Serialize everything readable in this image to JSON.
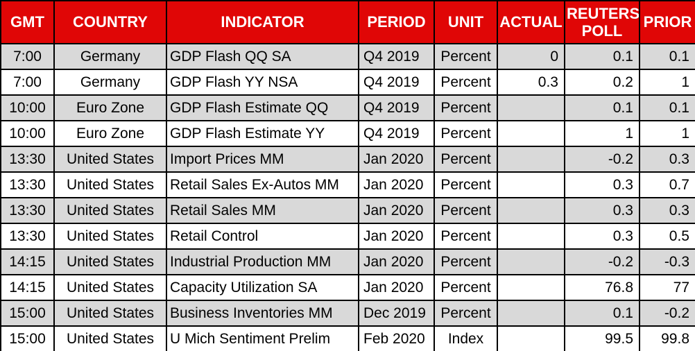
{
  "title": "Economic Calendar Table",
  "colors": {
    "header_bg": "#e00606",
    "header_text": "#ffffff",
    "row_bg": "#ffffff",
    "row_alt_bg": "#d9d9d9",
    "border": "#000000",
    "text": "#000000"
  },
  "chart_data": {
    "type": "table",
    "legend_position": "none",
    "grid": true,
    "columns": [
      {
        "key": "gmt",
        "label": "GMT"
      },
      {
        "key": "country",
        "label": "COUNTRY"
      },
      {
        "key": "indicator",
        "label": "INDICATOR"
      },
      {
        "key": "period",
        "label": "PERIOD"
      },
      {
        "key": "unit",
        "label": "UNIT"
      },
      {
        "key": "actual",
        "label": "ACTUAL"
      },
      {
        "key": "reuters_poll",
        "label": "REUTERS POLL"
      },
      {
        "key": "prior",
        "label": "PRIOR"
      }
    ],
    "rows": [
      [
        "7:00",
        "Germany",
        "GDP Flash QQ SA",
        "Q4 2019",
        "Percent",
        "0",
        "0.1",
        "0.1"
      ],
      [
        "7:00",
        "Germany",
        "GDP Flash YY NSA",
        "Q4 2019",
        "Percent",
        "0.3",
        "0.2",
        "1"
      ],
      [
        "10:00",
        "Euro Zone",
        "GDP Flash Estimate QQ",
        "Q4 2019",
        "Percent",
        "",
        "0.1",
        "0.1"
      ],
      [
        "10:00",
        "Euro Zone",
        "GDP Flash Estimate YY",
        "Q4 2019",
        "Percent",
        "",
        "1",
        "1"
      ],
      [
        "13:30",
        "United States",
        "Import Prices MM",
        "Jan 2020",
        "Percent",
        "",
        "-0.2",
        "0.3"
      ],
      [
        "13:30",
        "United States",
        "Retail Sales Ex-Autos MM",
        "Jan 2020",
        "Percent",
        "",
        "0.3",
        "0.7"
      ],
      [
        "13:30",
        "United States",
        "Retail Sales MM",
        "Jan 2020",
        "Percent",
        "",
        "0.3",
        "0.3"
      ],
      [
        "13:30",
        "United States",
        "Retail Control",
        "Jan 2020",
        "Percent",
        "",
        "0.3",
        "0.5"
      ],
      [
        "14:15",
        "United States",
        "Industrial Production MM",
        "Jan 2020",
        "Percent",
        "",
        "-0.2",
        "-0.3"
      ],
      [
        "14:15",
        "United States",
        "Capacity Utilization SA",
        "Jan 2020",
        "Percent",
        "",
        "76.8",
        "77"
      ],
      [
        "15:00",
        "United States",
        "Business Inventories MM",
        "Dec 2019",
        "Percent",
        "",
        "0.1",
        "-0.2"
      ],
      [
        "15:00",
        "United States",
        "U Mich Sentiment Prelim",
        "Feb 2020",
        "Index",
        "",
        "99.5",
        "99.8"
      ]
    ]
  }
}
